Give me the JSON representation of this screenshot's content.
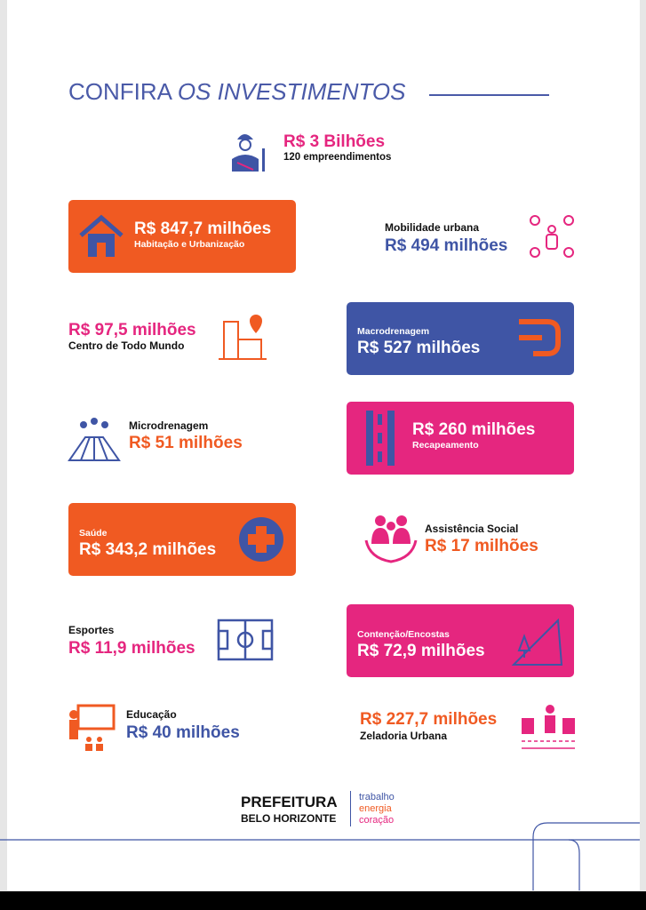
{
  "header": {
    "title": "CONFIRA",
    "title_emphasis": "OS INVESTIMENTOS"
  },
  "total": {
    "amount": "R$ 3 Bilhões",
    "label": "120 empreendimentos"
  },
  "items": [
    {
      "amount": "R$ 847,7 milhões",
      "label": "Habitação e Urbanização"
    },
    {
      "amount": "R$ 494 milhões",
      "label": "Mobilidade urbana"
    },
    {
      "amount": "R$ 97,5 milhões",
      "label": "Centro de Todo Mundo"
    },
    {
      "amount": "R$ 527 milhões",
      "label": "Macrodrenagem"
    },
    {
      "amount": "R$ 51 milhões",
      "label": "Microdrenagem"
    },
    {
      "amount": "R$ 260 milhões",
      "label": "Recapeamento"
    },
    {
      "amount": "R$ 343,2 milhões",
      "label": "Saúde"
    },
    {
      "amount": "R$ 17 milhões",
      "label": "Assistência Social"
    },
    {
      "amount": "R$ 11,9 milhões",
      "label": "Esportes"
    },
    {
      "amount": "R$ 72,9 milhões",
      "label": "Contenção/Encostas"
    },
    {
      "amount": "R$ 40 milhões",
      "label": "Educação"
    },
    {
      "amount": "R$ 227,7 milhões",
      "label": "Zeladoria Urbana"
    }
  ],
  "footer": {
    "brand_line1": "PREFEITURA",
    "brand_line2": "BELO HORIZONTE",
    "motto": [
      "trabalho",
      "energia",
      "coração"
    ]
  }
}
